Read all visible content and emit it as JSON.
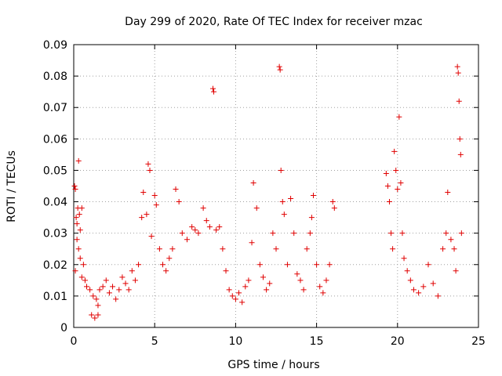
{
  "chart_data": {
    "type": "scatter",
    "title": "Day 299 of 2020, Rate Of TEC Index for receiver mzac",
    "xlabel": "GPS time / hours",
    "ylabel": "ROTI / TECUs",
    "xlim": [
      0,
      25
    ],
    "ylim": [
      0,
      0.09
    ],
    "x_ticks": [
      "0",
      "5",
      "10",
      "15",
      "20",
      "25"
    ],
    "y_ticks": [
      "0",
      "0.01",
      "0.02",
      "0.03",
      "0.04",
      "0.05",
      "0.06",
      "0.07",
      "0.08",
      "0.09"
    ],
    "grid": true,
    "marker": "+",
    "series": [
      {
        "name": "ROTI",
        "color": "#e00000",
        "points": [
          [
            0.05,
            0.045
          ],
          [
            0.1,
            0.044
          ],
          [
            0.15,
            0.035
          ],
          [
            0.2,
            0.033
          ],
          [
            0.25,
            0.038
          ],
          [
            0.3,
            0.053
          ],
          [
            0.35,
            0.036
          ],
          [
            0.4,
            0.031
          ],
          [
            0.5,
            0.038
          ],
          [
            0.2,
            0.028
          ],
          [
            0.3,
            0.025
          ],
          [
            0.4,
            0.022
          ],
          [
            0.6,
            0.02
          ],
          [
            0.1,
            0.018
          ],
          [
            0.5,
            0.016
          ],
          [
            0.7,
            0.015
          ],
          [
            0.8,
            0.013
          ],
          [
            1.0,
            0.012
          ],
          [
            1.2,
            0.01
          ],
          [
            1.4,
            0.009
          ],
          [
            1.5,
            0.007
          ],
          [
            1.6,
            0.012
          ],
          [
            1.8,
            0.013
          ],
          [
            2.0,
            0.015
          ],
          [
            1.1,
            0.004
          ],
          [
            1.3,
            0.003
          ],
          [
            1.5,
            0.004
          ],
          [
            2.2,
            0.011
          ],
          [
            2.4,
            0.013
          ],
          [
            2.6,
            0.009
          ],
          [
            2.8,
            0.012
          ],
          [
            3.0,
            0.016
          ],
          [
            3.2,
            0.014
          ],
          [
            3.4,
            0.012
          ],
          [
            3.6,
            0.018
          ],
          [
            3.8,
            0.015
          ],
          [
            4.0,
            0.02
          ],
          [
            4.2,
            0.035
          ],
          [
            4.3,
            0.043
          ],
          [
            4.5,
            0.036
          ],
          [
            4.6,
            0.052
          ],
          [
            4.7,
            0.05
          ],
          [
            4.8,
            0.029
          ],
          [
            5.0,
            0.042
          ],
          [
            5.1,
            0.039
          ],
          [
            5.3,
            0.025
          ],
          [
            5.5,
            0.02
          ],
          [
            5.7,
            0.018
          ],
          [
            5.9,
            0.022
          ],
          [
            6.1,
            0.025
          ],
          [
            6.3,
            0.044
          ],
          [
            6.5,
            0.04
          ],
          [
            6.7,
            0.03
          ],
          [
            7.0,
            0.028
          ],
          [
            7.3,
            0.032
          ],
          [
            7.5,
            0.031
          ],
          [
            7.7,
            0.03
          ],
          [
            8.0,
            0.038
          ],
          [
            8.2,
            0.034
          ],
          [
            8.4,
            0.032
          ],
          [
            8.6,
            0.076
          ],
          [
            8.65,
            0.075
          ],
          [
            8.8,
            0.031
          ],
          [
            9.0,
            0.032
          ],
          [
            9.2,
            0.025
          ],
          [
            9.4,
            0.018
          ],
          [
            9.6,
            0.012
          ],
          [
            9.8,
            0.01
          ],
          [
            10.0,
            0.009
          ],
          [
            10.2,
            0.011
          ],
          [
            10.4,
            0.008
          ],
          [
            10.6,
            0.013
          ],
          [
            10.8,
            0.015
          ],
          [
            11.0,
            0.027
          ],
          [
            11.1,
            0.046
          ],
          [
            11.3,
            0.038
          ],
          [
            11.5,
            0.02
          ],
          [
            11.7,
            0.016
          ],
          [
            11.9,
            0.012
          ],
          [
            12.1,
            0.014
          ],
          [
            12.3,
            0.03
          ],
          [
            12.5,
            0.025
          ],
          [
            12.7,
            0.083
          ],
          [
            12.75,
            0.082
          ],
          [
            12.8,
            0.05
          ],
          [
            12.9,
            0.04
          ],
          [
            13.0,
            0.036
          ],
          [
            13.2,
            0.02
          ],
          [
            13.4,
            0.041
          ],
          [
            13.6,
            0.03
          ],
          [
            13.8,
            0.017
          ],
          [
            14.0,
            0.015
          ],
          [
            14.2,
            0.012
          ],
          [
            14.4,
            0.025
          ],
          [
            14.6,
            0.03
          ],
          [
            14.7,
            0.035
          ],
          [
            14.8,
            0.042
          ],
          [
            15.0,
            0.02
          ],
          [
            15.2,
            0.013
          ],
          [
            15.4,
            0.011
          ],
          [
            15.6,
            0.015
          ],
          [
            15.8,
            0.02
          ],
          [
            16.0,
            0.04
          ],
          [
            16.1,
            0.038
          ],
          [
            19.3,
            0.049
          ],
          [
            19.4,
            0.045
          ],
          [
            19.5,
            0.04
          ],
          [
            19.6,
            0.03
          ],
          [
            19.7,
            0.025
          ],
          [
            19.8,
            0.056
          ],
          [
            19.9,
            0.05
          ],
          [
            20.0,
            0.044
          ],
          [
            20.1,
            0.067
          ],
          [
            20.2,
            0.046
          ],
          [
            20.3,
            0.03
          ],
          [
            20.4,
            0.022
          ],
          [
            20.6,
            0.018
          ],
          [
            20.8,
            0.015
          ],
          [
            21.0,
            0.012
          ],
          [
            21.3,
            0.011
          ],
          [
            21.6,
            0.013
          ],
          [
            21.9,
            0.02
          ],
          [
            22.2,
            0.014
          ],
          [
            22.5,
            0.01
          ],
          [
            22.8,
            0.025
          ],
          [
            23.0,
            0.03
          ],
          [
            23.1,
            0.043
          ],
          [
            23.3,
            0.028
          ],
          [
            23.5,
            0.025
          ],
          [
            23.6,
            0.018
          ],
          [
            23.7,
            0.083
          ],
          [
            23.75,
            0.081
          ],
          [
            23.8,
            0.072
          ],
          [
            23.85,
            0.06
          ],
          [
            23.9,
            0.055
          ],
          [
            23.95,
            0.03
          ]
        ]
      }
    ]
  }
}
